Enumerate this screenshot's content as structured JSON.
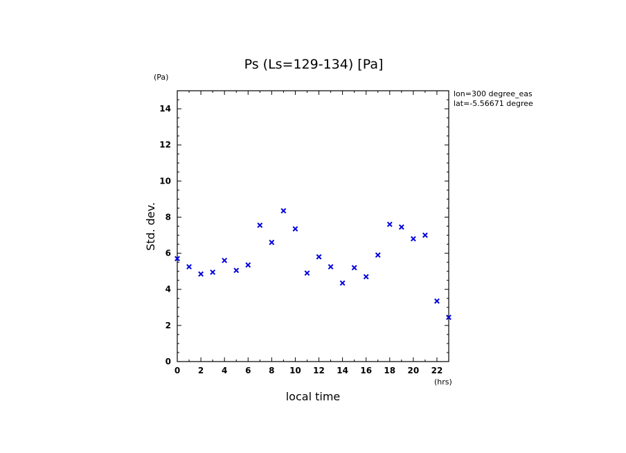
{
  "chart_data": {
    "type": "scatter",
    "title": "Ps (Ls=129-134) [Pa]",
    "xlabel": "local time",
    "x_unit": "(hrs)",
    "ylabel": "Std. dev.",
    "y_unit": "(Pa)",
    "xlim": [
      0,
      23
    ],
    "ylim": [
      0,
      15
    ],
    "x_ticks": [
      0,
      2,
      4,
      6,
      8,
      10,
      12,
      14,
      16,
      18,
      20,
      22
    ],
    "y_ticks": [
      0,
      2,
      4,
      6,
      8,
      10,
      12,
      14
    ],
    "annotations": [
      "lon=300 degree_eas",
      "lat=-5.56671 degree"
    ],
    "marker": "x",
    "marker_color": "#0000dd",
    "grid": false,
    "series": [
      {
        "x": [
          0,
          1,
          2,
          3,
          4,
          5,
          6,
          7,
          8,
          9,
          10,
          11,
          12,
          13,
          14,
          15,
          16,
          17,
          18,
          19,
          20,
          21,
          22,
          23
        ],
        "y": [
          5.7,
          5.25,
          4.85,
          4.95,
          5.6,
          5.05,
          5.35,
          7.55,
          6.6,
          8.35,
          7.35,
          4.9,
          5.8,
          5.25,
          4.35,
          5.2,
          4.7,
          5.9,
          7.6,
          7.45,
          6.8,
          7.0,
          3.35,
          2.45
        ]
      }
    ]
  }
}
